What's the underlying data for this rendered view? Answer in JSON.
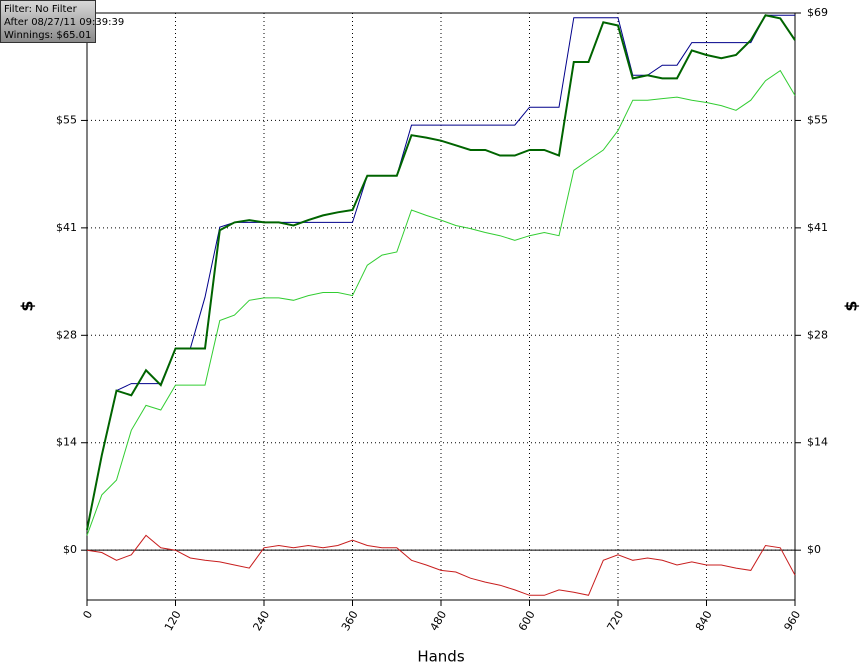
{
  "info": {
    "filter": "Filter: No Filter",
    "after": "After 08/27/11 09:39:39",
    "winnings": "Winnings: $65.01"
  },
  "chart_data": {
    "type": "line",
    "x_label": "Hands",
    "y_label": "$",
    "y2_label": "$",
    "x": [
      0,
      20,
      40,
      60,
      80,
      100,
      120,
      140,
      160,
      180,
      200,
      220,
      240,
      260,
      280,
      300,
      320,
      340,
      360,
      380,
      400,
      420,
      440,
      460,
      480,
      500,
      520,
      540,
      560,
      580,
      600,
      620,
      640,
      660,
      680,
      700,
      720,
      740,
      760,
      780,
      800,
      820,
      840,
      860,
      880,
      900,
      920,
      940,
      960
    ],
    "series": [
      {
        "color": "#00008b",
        "values": [
          2.6,
          12.2,
          20.5,
          21.4,
          21.4,
          21.4,
          25.9,
          25.9,
          32.5,
          41.5,
          42.1,
          42.1,
          42.1,
          42.1,
          42.1,
          42.1,
          42.1,
          42.1,
          42.1,
          48.1,
          48.1,
          48.1,
          54.6,
          54.6,
          54.6,
          54.6,
          54.6,
          54.6,
          54.6,
          54.6,
          56.9,
          56.9,
          56.9,
          68.4,
          68.4,
          68.4,
          68.4,
          61.0,
          61.0,
          62.3,
          62.3,
          65.2,
          65.2,
          65.2,
          65.2,
          65.2,
          68.7,
          68.7,
          68.7
        ]
      },
      {
        "color": "#32cd32",
        "values": [
          1.9,
          7.1,
          9.0,
          15.4,
          18.6,
          18.0,
          21.2,
          21.2,
          21.2,
          29.5,
          30.2,
          32.1,
          32.4,
          32.4,
          32.1,
          32.7,
          33.1,
          33.1,
          32.7,
          36.6,
          37.9,
          38.3,
          43.7,
          43.0,
          42.4,
          41.7,
          41.3,
          40.8,
          40.4,
          39.8,
          40.4,
          40.8,
          40.4,
          48.8,
          50.1,
          51.4,
          53.9,
          57.8,
          57.8,
          58.0,
          58.2,
          57.8,
          57.5,
          57.1,
          56.5,
          57.8,
          60.3,
          61.6,
          58.4
        ]
      },
      {
        "color": "#006400",
        "values": [
          2.6,
          12.2,
          20.5,
          19.9,
          23.1,
          21.2,
          25.9,
          25.9,
          25.9,
          41.1,
          42.1,
          42.4,
          42.1,
          42.1,
          41.7,
          42.4,
          43.0,
          43.4,
          43.7,
          48.1,
          48.1,
          48.1,
          53.3,
          53.0,
          52.6,
          52.0,
          51.4,
          51.4,
          50.7,
          50.7,
          51.4,
          51.4,
          50.7,
          62.7,
          62.7,
          67.8,
          67.4,
          60.6,
          61.0,
          60.6,
          60.6,
          64.2,
          63.6,
          63.2,
          63.6,
          65.5,
          68.7,
          68.3,
          65.5
        ]
      },
      {
        "color": "#c81e1e",
        "values": [
          0,
          -0.3,
          -1.3,
          -0.6,
          1.9,
          0.3,
          0,
          -1.0,
          -1.3,
          -1.5,
          -1.9,
          -2.3,
          0.3,
          0.6,
          0.3,
          0.6,
          0.3,
          0.6,
          1.3,
          0.6,
          0.3,
          0.3,
          -1.3,
          -1.9,
          -2.6,
          -2.8,
          -3.6,
          -4.1,
          -4.5,
          -5.1,
          -5.8,
          -5.8,
          -5.1,
          -5.4,
          -5.8,
          -1.3,
          -0.6,
          -1.3,
          -1.0,
          -1.3,
          -1.9,
          -1.5,
          -1.9,
          -1.9,
          -2.3,
          -2.6,
          0.6,
          0.3,
          -3.2
        ]
      }
    ],
    "xlim": [
      0,
      960
    ],
    "xticks": [
      0,
      120,
      240,
      360,
      480,
      600,
      720,
      840,
      960
    ],
    "ylim": [
      -6.4,
      69
    ],
    "yticks": [
      {
        "value": 0,
        "label": "$0"
      },
      {
        "value": 13.8,
        "label": "$14"
      },
      {
        "value": 27.6,
        "label": "$28"
      },
      {
        "value": 41.4,
        "label": "$41"
      },
      {
        "value": 55.2,
        "label": "$55"
      },
      {
        "value": 69,
        "label": "$69"
      }
    ],
    "grid": true
  }
}
